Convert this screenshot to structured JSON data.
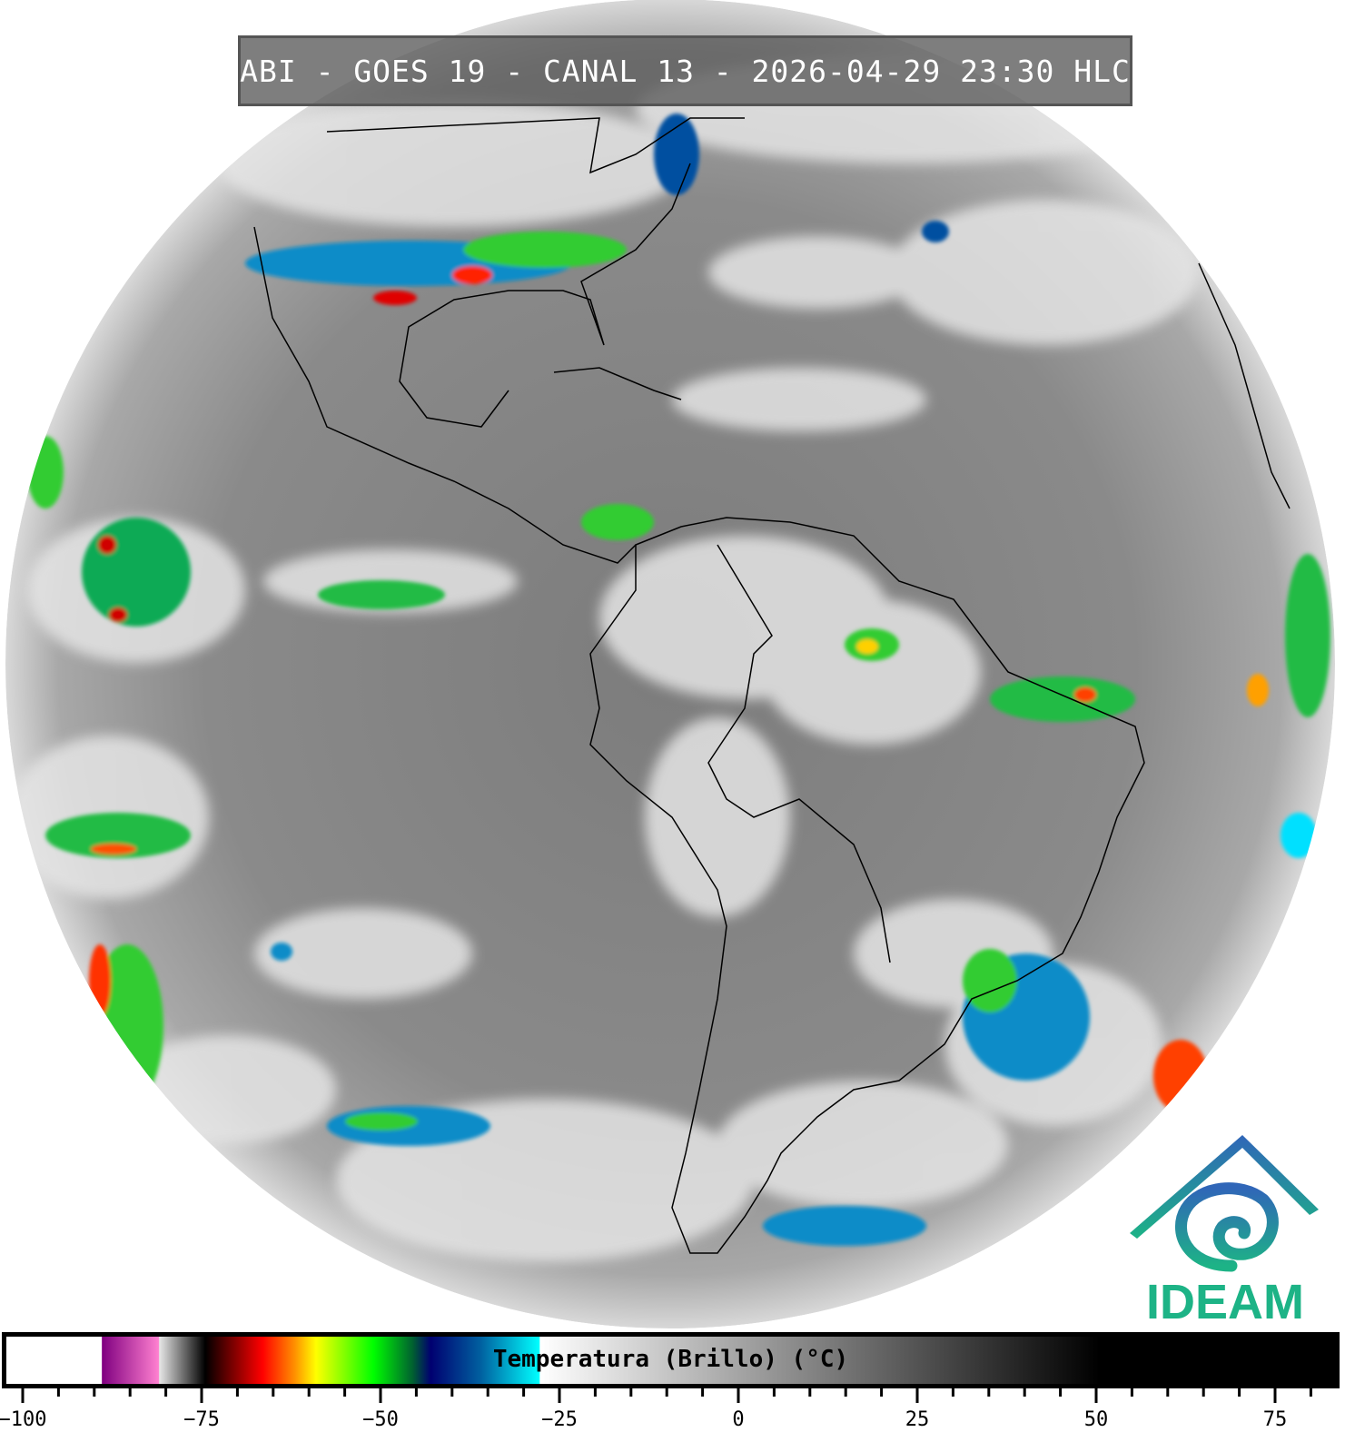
{
  "title": "ABI - GOES 19 - CANAL 13 - 2026-04-29 23:30 HLC",
  "logo": {
    "text": "IDEAM",
    "colors": [
      "#3066b8",
      "#1db386"
    ]
  },
  "colorbar": {
    "label": "Temperatura (Brillo) (°C)",
    "range": [
      -102.5,
      83
    ],
    "ticks": {
      "major": [
        -100,
        -75,
        -50,
        -25,
        0,
        25,
        50,
        75
      ],
      "minor_step": 5
    },
    "stops": [
      {
        "value": -102.5,
        "color": "#ffffff"
      },
      {
        "value": -89,
        "color": "#ffffff"
      },
      {
        "value": -88.9,
        "color": "#800080"
      },
      {
        "value": -81,
        "color": "#ff80d0"
      },
      {
        "value": -80.9,
        "color": "#e6e6e6"
      },
      {
        "value": -74.5,
        "color": "#000000"
      },
      {
        "value": -71,
        "color": "#700000"
      },
      {
        "value": -66.5,
        "color": "#ff0000"
      },
      {
        "value": -62,
        "color": "#ff9000"
      },
      {
        "value": -59,
        "color": "#ffff00"
      },
      {
        "value": -51,
        "color": "#00ff00"
      },
      {
        "value": -45.5,
        "color": "#006030"
      },
      {
        "value": -43,
        "color": "#000070"
      },
      {
        "value": -36,
        "color": "#0060a0"
      },
      {
        "value": -27.8,
        "color": "#00ffff"
      },
      {
        "value": -27.7,
        "color": "#ffffff"
      },
      {
        "value": 50.5,
        "color": "#000000"
      },
      {
        "value": 83,
        "color": "#000000"
      }
    ]
  }
}
